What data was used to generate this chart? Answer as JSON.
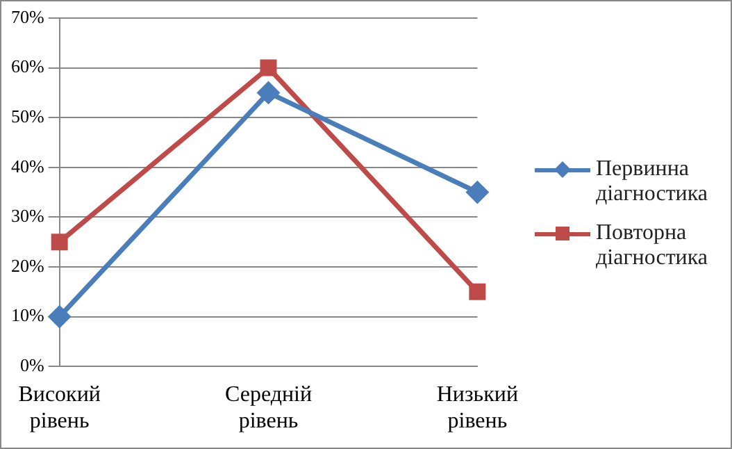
{
  "chart_data": {
    "type": "line",
    "categories": [
      "Високий рівень",
      "Середній рівень",
      "Низький рівень"
    ],
    "series": [
      {
        "name": "Первинна діагностика",
        "color": "#4a7ebb",
        "values": [
          10,
          55,
          35
        ],
        "marker": "diamond"
      },
      {
        "name": "Повторна діагностика",
        "color": "#be4b48",
        "values": [
          25,
          60,
          15
        ],
        "marker": "square"
      }
    ],
    "ylim": [
      0,
      70
    ],
    "yticks": [
      {
        "value": 0,
        "label": "0%"
      },
      {
        "value": 10,
        "label": "10%"
      },
      {
        "value": 20,
        "label": "20%"
      },
      {
        "value": 30,
        "label": "30%"
      },
      {
        "value": 40,
        "label": "40%"
      },
      {
        "value": 50,
        "label": "50%"
      },
      {
        "value": 60,
        "label": "60%"
      },
      {
        "value": 70,
        "label": "70%"
      }
    ],
    "grid": "y",
    "legend": "right",
    "line_style": "solid"
  }
}
